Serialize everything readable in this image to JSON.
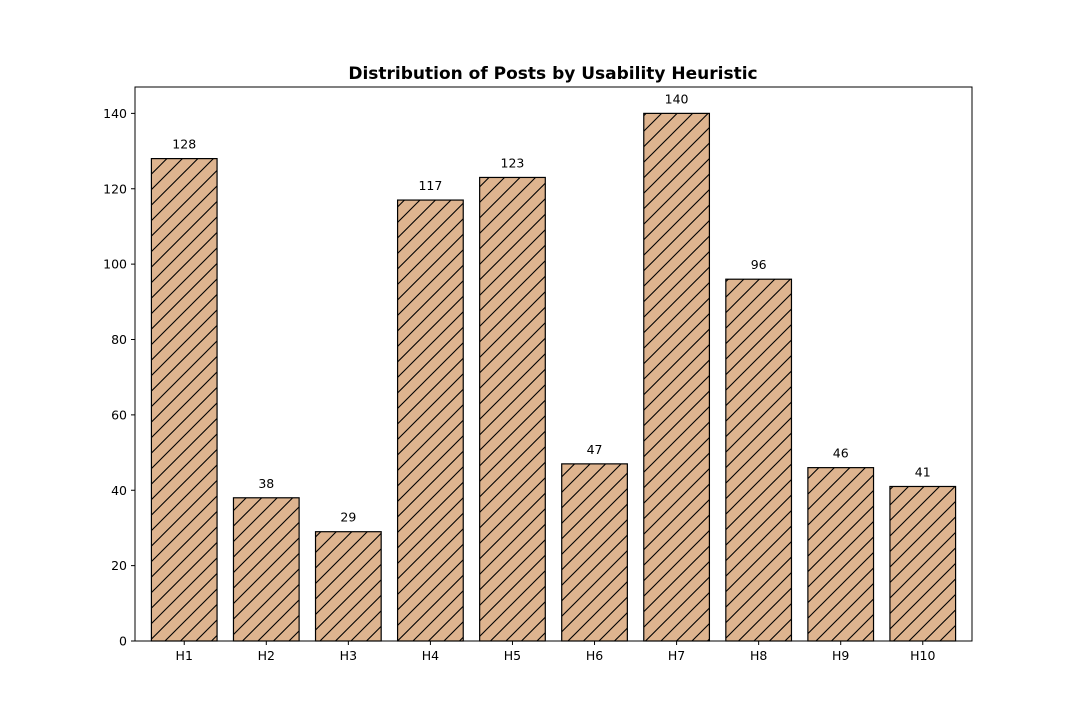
{
  "chart_data": {
    "type": "bar",
    "title": "Distribution of Posts by Usability Heuristic",
    "xlabel": "",
    "ylabel": "",
    "categories": [
      "H1",
      "H2",
      "H3",
      "H4",
      "H5",
      "H6",
      "H7",
      "H8",
      "H9",
      "H10"
    ],
    "values": [
      128,
      38,
      29,
      117,
      123,
      47,
      140,
      96,
      46,
      41
    ],
    "ylim": [
      0,
      147
    ],
    "yticks": [
      0,
      20,
      40,
      60,
      80,
      100,
      120,
      140
    ],
    "grid": false,
    "legend": "none",
    "bar_color": "#deb48f",
    "bar_edge_color": "#000000",
    "bar_hatch": "diagonal"
  }
}
